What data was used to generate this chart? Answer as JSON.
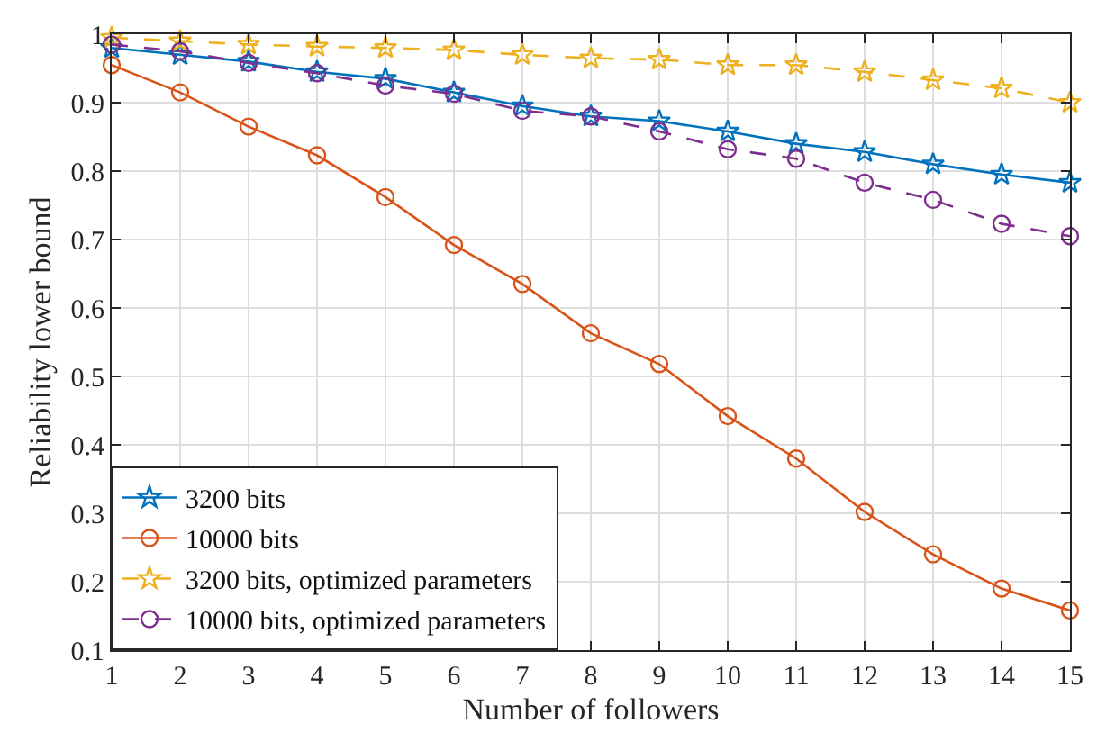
{
  "chart_data": {
    "type": "line",
    "xlabel": "Number of followers",
    "ylabel": "Reliability lower bound",
    "x": [
      1,
      2,
      3,
      4,
      5,
      6,
      7,
      8,
      9,
      10,
      11,
      12,
      13,
      14,
      15
    ],
    "xlim": [
      1,
      15
    ],
    "xticks": [
      1,
      2,
      3,
      4,
      5,
      6,
      7,
      8,
      9,
      10,
      11,
      12,
      13,
      14,
      15
    ],
    "ylim": [
      0.1,
      1
    ],
    "yticks": [
      0.1,
      0.2,
      0.3,
      0.4,
      0.5,
      0.6,
      0.7,
      0.8,
      0.9,
      1
    ],
    "grid": true,
    "legend": "bottom left",
    "series": [
      {
        "name": "3200 bits",
        "color": "#0072bd",
        "marker": "star",
        "line_style": "solid",
        "values": [
          0.98,
          0.97,
          0.96,
          0.945,
          0.935,
          0.915,
          0.895,
          0.88,
          0.873,
          0.858,
          0.84,
          0.828,
          0.81,
          0.795,
          0.783
        ]
      },
      {
        "name": "10000 bits",
        "color": "#d95319",
        "marker": "circle",
        "line_style": "solid",
        "values": [
          0.955,
          0.915,
          0.865,
          0.823,
          0.762,
          0.692,
          0.635,
          0.563,
          0.518,
          0.442,
          0.38,
          0.302,
          0.24,
          0.19,
          0.158
        ]
      },
      {
        "name": "3200 bits, optimized parameters",
        "color": "#edb120",
        "marker": "star",
        "line_style": "dashed",
        "values": [
          0.995,
          0.99,
          0.985,
          0.982,
          0.98,
          0.977,
          0.97,
          0.965,
          0.963,
          0.955,
          0.955,
          0.945,
          0.933,
          0.921,
          0.9
        ]
      },
      {
        "name": "10000 bits, optimized parameters",
        "color": "#7e2f8e",
        "marker": "circle",
        "line_style": "dashed",
        "values": [
          0.985,
          0.975,
          0.958,
          0.943,
          0.925,
          0.913,
          0.888,
          0.88,
          0.858,
          0.832,
          0.818,
          0.783,
          0.758,
          0.723,
          0.705
        ]
      }
    ]
  }
}
